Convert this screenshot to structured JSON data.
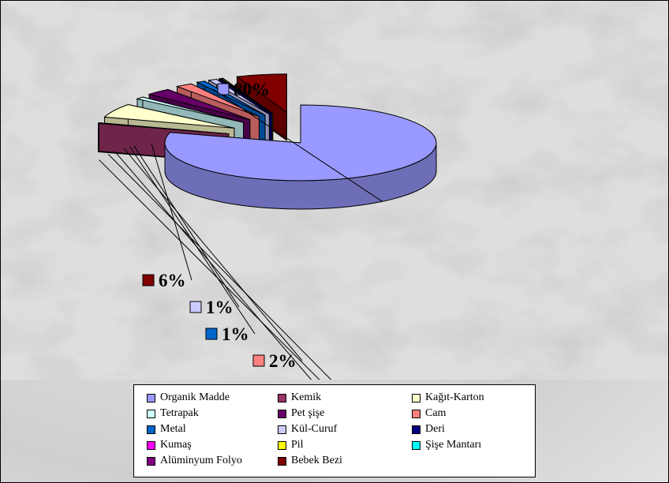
{
  "chart_data": {
    "type": "pie",
    "style": "3d-exploded",
    "slices": [
      {
        "label": "Organik Madde",
        "value": 80,
        "data_label": "80%",
        "color": "#9999ff",
        "shown_in_pie": true
      },
      {
        "label": "Kemik",
        "value": 0.3,
        "data_label": "",
        "color": "#993366",
        "shown_in_pie": true
      },
      {
        "label": "Kağıt-Karton",
        "value": 6,
        "data_label": "6%",
        "color": "#ffffcc",
        "shown_in_pie": true
      },
      {
        "label": "Tetrapak",
        "value": 1,
        "data_label": "1%",
        "color": "#ccffff",
        "shown_in_pie": true
      },
      {
        "label": "Pet  şişe",
        "value": 3,
        "data_label": "3%",
        "color": "#660066",
        "shown_in_pie": true
      },
      {
        "label": "Cam",
        "value": 2,
        "data_label": "2%",
        "color": "#ff8080",
        "shown_in_pie": true
      },
      {
        "label": "Metal",
        "value": 1,
        "data_label": "1%",
        "color": "#0066cc",
        "shown_in_pie": true
      },
      {
        "label": "Kül-Curuf",
        "value": 1,
        "data_label": "1%",
        "color": "#ccccff",
        "shown_in_pie": true
      },
      {
        "label": "Deri",
        "value": 0.2,
        "data_label": "",
        "color": "#000080",
        "shown_in_pie": true
      },
      {
        "label": "Kumaş",
        "value": 0,
        "data_label": "",
        "color": "#ff00ff",
        "shown_in_pie": false
      },
      {
        "label": " Pil",
        "value": 0.2,
        "data_label": "",
        "color": "#ffff00",
        "shown_in_pie": true
      },
      {
        "label": "Şişe Mantarı",
        "value": 0,
        "data_label": "",
        "color": "#00ffff",
        "shown_in_pie": false
      },
      {
        "label": "Alüminyum Folyo",
        "value": 0,
        "data_label": "",
        "color": "#800080",
        "shown_in_pie": false
      },
      {
        "label": "Bebek Bezi",
        "value": 6,
        "data_label": "6%",
        "color": "#800000",
        "shown_in_pie": true
      }
    ],
    "legend_position": "bottom",
    "legend_columns": 3,
    "data_label_swatches": true
  }
}
